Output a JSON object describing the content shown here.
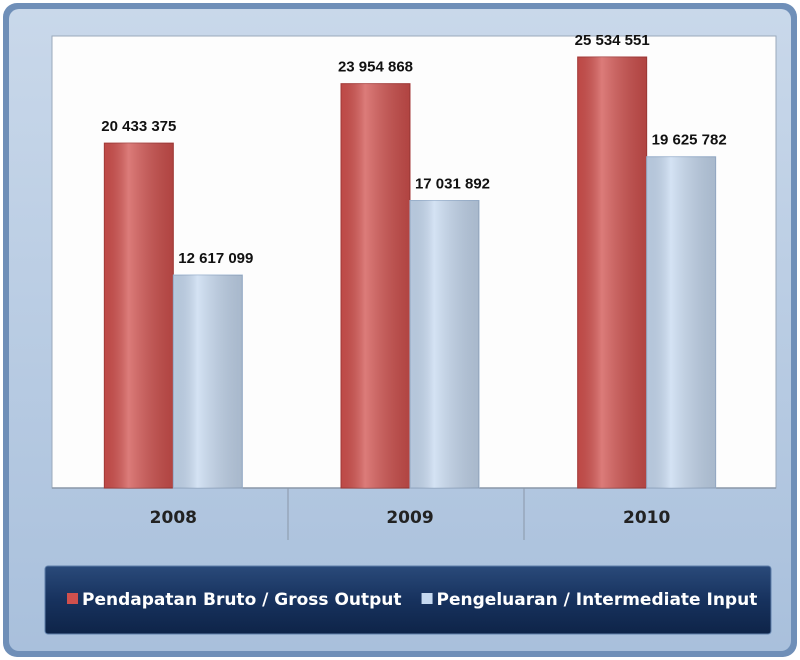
{
  "chart_data": {
    "type": "bar",
    "categories": [
      "2008",
      "2009",
      "2010"
    ],
    "series": [
      {
        "name": "Pendapatan Bruto / Gross Output",
        "color": "#d0504d",
        "values": [
          20433375,
          23954868,
          25534551
        ],
        "value_labels": [
          "20 433 375",
          "23 954 868",
          "25 534 551"
        ]
      },
      {
        "name": "Pengeluaran / Intermediate Input",
        "color": "#c6d9f0",
        "values": [
          12617099,
          17031892,
          19625782
        ],
        "value_labels": [
          "12 617 099",
          "17 031 892",
          "19 625 782"
        ]
      }
    ],
    "legend": "bottom"
  }
}
